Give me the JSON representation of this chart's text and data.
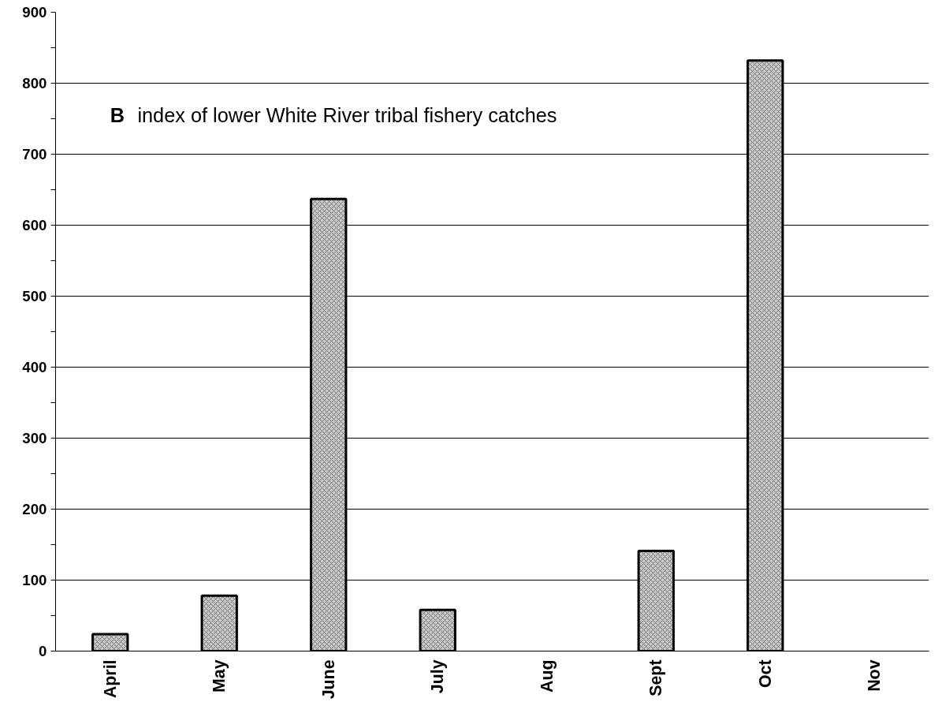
{
  "chart_data": {
    "type": "bar",
    "categories": [
      "April",
      "May",
      "June",
      "July",
      "Aug",
      "Sept",
      "Oct",
      "Nov"
    ],
    "values": [
      24,
      78,
      637,
      58,
      null,
      141,
      832,
      null
    ],
    "color": "#c8c8c8",
    "annotations": [
      "B",
      "index of lower White River tribal fishery catches"
    ],
    "ylim": [
      0,
      900
    ],
    "yticks": [
      0,
      {
        "value": 50,
        "label": null
      },
      100,
      {
        "value": 150,
        "label": null
      },
      200,
      {
        "value": 250,
        "label": null
      },
      300,
      {
        "value": 350,
        "label": null
      },
      400,
      {
        "value": 450,
        "label": null
      },
      500,
      {
        "value": 550,
        "label": null
      },
      600,
      {
        "value": 650,
        "label": null
      },
      700,
      {
        "value": 750,
        "label": null
      },
      800,
      {
        "value": 850,
        "label": null
      },
      900
    ],
    "grid": "y"
  }
}
